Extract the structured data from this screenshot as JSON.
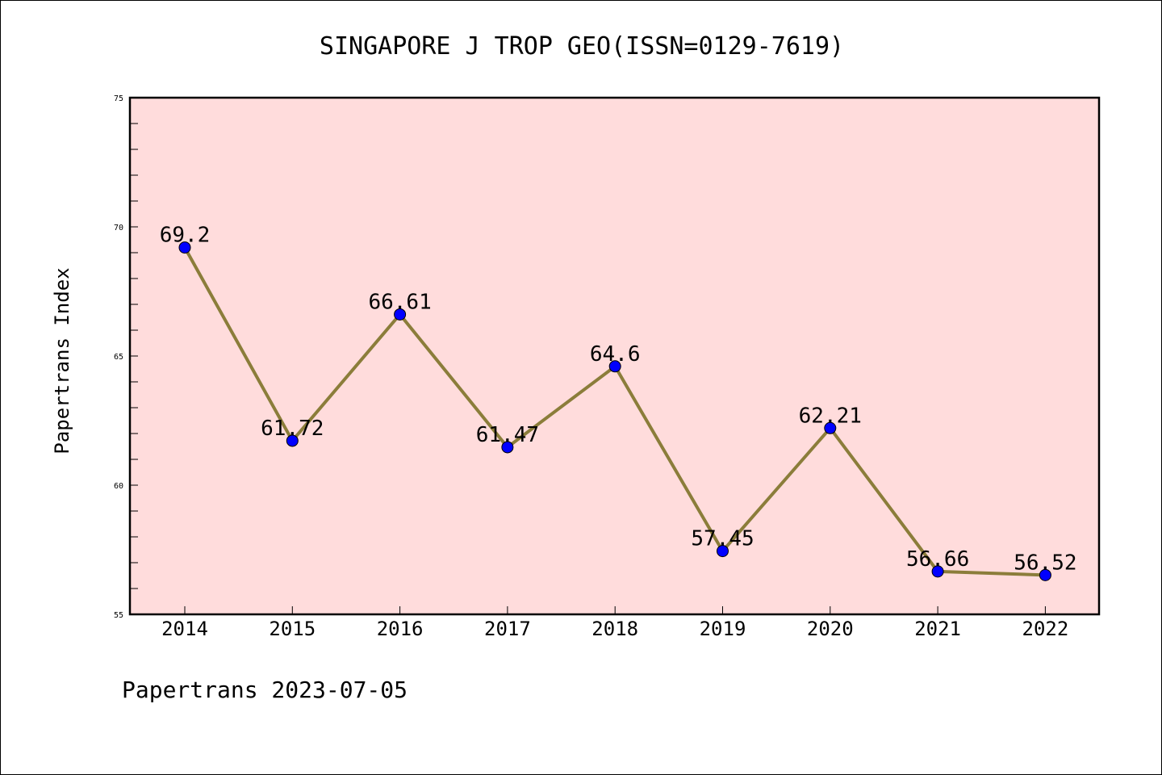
{
  "chart_data": {
    "type": "line",
    "title": "SINGAPORE J TROP GEO(ISSN=0129-7619)",
    "ylabel": "Papertrans Index",
    "xlabel": "",
    "footer": "Papertrans 2023-07-05",
    "categories": [
      "2014",
      "2015",
      "2016",
      "2017",
      "2018",
      "2019",
      "2020",
      "2021",
      "2022"
    ],
    "series": [
      {
        "values": [
          69.2,
          61.72,
          66.61,
          61.47,
          64.6,
          57.45,
          62.21,
          56.66,
          56.52
        ],
        "labels": [
          "69.2",
          "61.72",
          "66.61",
          "61.47",
          "64.6",
          "57.45",
          "62.21",
          "56.66",
          "56.52"
        ]
      }
    ],
    "ylim": [
      55,
      75
    ],
    "yticks": [
      55,
      60,
      65,
      70,
      75
    ],
    "grid": false,
    "colors": {
      "plot_background": "#ffdcdc",
      "line": "#8b7d3a",
      "marker": "#0000ff"
    }
  }
}
